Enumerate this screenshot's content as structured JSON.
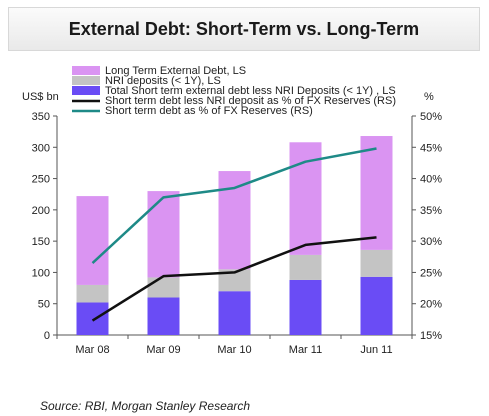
{
  "chart_data": {
    "type": "bar",
    "title": "External Debt: Short-Term vs. Long-Term",
    "ylabel_left": "US$ bn",
    "ylabel_right": "%",
    "categories": [
      "Mar 08",
      "Mar 09",
      "Mar 10",
      "Mar 11",
      "Jun 11"
    ],
    "ylim_left": [
      0,
      350
    ],
    "yticks_left": [
      "0",
      "50",
      "100",
      "150",
      "200",
      "250",
      "300",
      "350"
    ],
    "ylim_right": [
      15,
      50
    ],
    "yticks_right": [
      "15%",
      "20%",
      "25%",
      "30%",
      "35%",
      "40%",
      "45%",
      "50%"
    ],
    "stacked_series": [
      {
        "name": "Total Short term external debt less NRI Deposits (< 1Y) , LS",
        "color": "#6a4cf5",
        "values": [
          52,
          60,
          70,
          88,
          93
        ]
      },
      {
        "name": "NRI deposits  (< 1Y), LS",
        "color": "#c4c4c4",
        "values": [
          28,
          32,
          35,
          40,
          43
        ]
      },
      {
        "name": "Long Term External Debt, LS",
        "color": "#da94f2",
        "values": [
          142,
          138,
          157,
          180,
          182
        ]
      }
    ],
    "line_series": [
      {
        "name": "Short term debt less NRI deposit as % of FX Reserves (RS)",
        "color": "#111111",
        "values": [
          17.3,
          24.4,
          25.0,
          29.4,
          30.6
        ]
      },
      {
        "name": "Short term debt as % of FX Reserves (RS)",
        "color": "#1e8a87",
        "values": [
          26.5,
          37.0,
          38.5,
          42.7,
          44.8
        ]
      }
    ],
    "legend": [
      {
        "label": "Long Term External Debt, LS",
        "kind": "bar",
        "color": "#da94f2"
      },
      {
        "label": "NRI deposits  (< 1Y), LS",
        "kind": "bar",
        "color": "#c4c4c4"
      },
      {
        "label": "Total Short term external debt less NRI Deposits (< 1Y) , LS",
        "kind": "bar",
        "color": "#6a4cf5"
      },
      {
        "label": "Short term debt less NRI deposit as % of FX Reserves (RS)",
        "kind": "line",
        "color": "#111111"
      },
      {
        "label": "Short term debt as % of FX Reserves (RS)",
        "kind": "line",
        "color": "#1e8a87"
      }
    ],
    "source": "Source: RBI, Morgan Stanley Research"
  }
}
